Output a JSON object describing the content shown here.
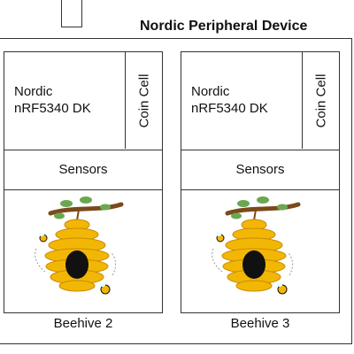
{
  "diagram": {
    "title": "Nordic Peripheral Device",
    "units": [
      {
        "board": [
          "Nordic",
          "nRF5340 DK"
        ],
        "power": "Coin Cell",
        "sensors": "Sensors",
        "label": "Beehive 2"
      },
      {
        "board": [
          "Nordic",
          "nRF5340 DK"
        ],
        "power": "Coin Cell",
        "sensors": "Sensors",
        "label": "Beehive 3"
      }
    ],
    "colors": {
      "line": "#333333",
      "hive": "#f2b705",
      "hive_dark": "#c98a00",
      "branch": "#7a4a1c",
      "leaf": "#6aa84f"
    }
  }
}
